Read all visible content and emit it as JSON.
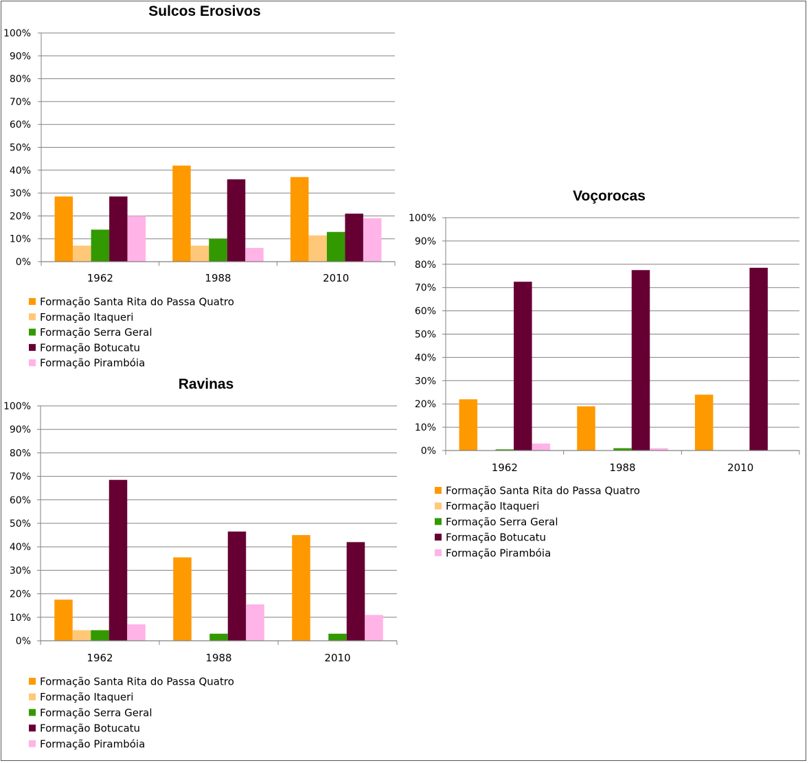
{
  "chart_data": [
    {
      "type": "bar",
      "title": "Sulcos Erosivos",
      "categories": [
        "1962",
        "1988",
        "2010"
      ],
      "yticks": [
        "0%",
        "10%",
        "20%",
        "30%",
        "40%",
        "50%",
        "60%",
        "70%",
        "80%",
        "90%",
        "100%"
      ],
      "ylim": [
        0,
        100
      ],
      "legend_position": "bottom",
      "series": [
        {
          "name": "Formação Santa Rita do Passa Quatro",
          "color": "#FF9900",
          "values": [
            28.5,
            42,
            37
          ]
        },
        {
          "name": "Formação Itaqueri",
          "color": "#FFC878",
          "values": [
            7,
            7,
            11.5
          ]
        },
        {
          "name": "Formação Serra Geral",
          "color": "#339900",
          "values": [
            14,
            10,
            13
          ]
        },
        {
          "name": "Formação Botucatu",
          "color": "#660033",
          "values": [
            28.5,
            36,
            21
          ]
        },
        {
          "name": "Formação Pirambóia",
          "color": "#FFB3E6",
          "values": [
            20,
            6,
            19
          ]
        }
      ]
    },
    {
      "type": "bar",
      "title": "Ravinas",
      "categories": [
        "1962",
        "1988",
        "2010"
      ],
      "yticks": [
        "0%",
        "10%",
        "20%",
        "30%",
        "40%",
        "50%",
        "60%",
        "70%",
        "80%",
        "90%",
        "100%"
      ],
      "ylim": [
        0,
        100
      ],
      "legend_position": "bottom",
      "series": [
        {
          "name": "Formação Santa Rita do Passa Quatro",
          "color": "#FF9900",
          "values": [
            17.5,
            35.5,
            45
          ]
        },
        {
          "name": "Formação Itaqueri",
          "color": "#FFC878",
          "values": [
            4.5,
            0,
            0
          ]
        },
        {
          "name": "Formação Serra Geral",
          "color": "#339900",
          "values": [
            4.5,
            3,
            3
          ]
        },
        {
          "name": "Formação Botucatu",
          "color": "#660033",
          "values": [
            68.5,
            46.5,
            42
          ]
        },
        {
          "name": "Formação Pirambóia",
          "color": "#FFB3E6",
          "values": [
            7,
            15.5,
            11
          ]
        }
      ]
    },
    {
      "type": "bar",
      "title": "Voçorocas",
      "categories": [
        "1962",
        "1988",
        "2010"
      ],
      "yticks": [
        "0%",
        "10%",
        "20%",
        "30%",
        "40%",
        "50%",
        "60%",
        "70%",
        "80%",
        "90%",
        "100%"
      ],
      "ylim": [
        0,
        100
      ],
      "legend_position": "bottom",
      "series": [
        {
          "name": "Formação Santa Rita do Passa Quatro",
          "color": "#FF9900",
          "values": [
            22,
            19,
            24
          ]
        },
        {
          "name": "Formação Itaqueri",
          "color": "#FFC878",
          "values": [
            0,
            0,
            0
          ]
        },
        {
          "name": "Formação Serra Geral",
          "color": "#339900",
          "values": [
            0.5,
            1,
            0
          ]
        },
        {
          "name": "Formação Botucatu",
          "color": "#660033",
          "values": [
            72.5,
            77.5,
            78.5
          ]
        },
        {
          "name": "Formação Pirambóia",
          "color": "#FFB3E6",
          "values": [
            3,
            1,
            0
          ]
        }
      ]
    }
  ]
}
